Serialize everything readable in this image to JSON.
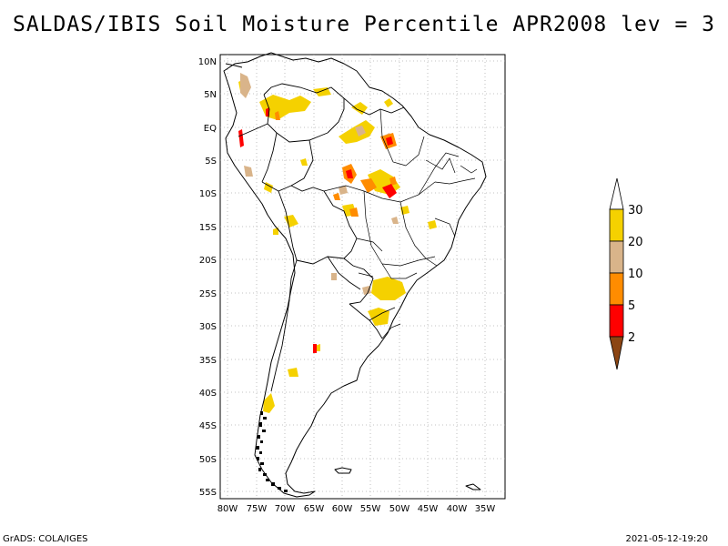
{
  "title": "SALDAS/IBIS Soil Moisture Percentile APR2008 lev = 3",
  "lat_labels": [
    "10N",
    "5N",
    "EQ",
    "5S",
    "10S",
    "15S",
    "20S",
    "25S",
    "30S",
    "35S",
    "40S",
    "45S",
    "50S",
    "55S"
  ],
  "lon_labels": [
    "80W",
    "75W",
    "70W",
    "65W",
    "60W",
    "55W",
    "50W",
    "45W",
    "40W",
    "35W"
  ],
  "colorbar": {
    "labels": [
      "30",
      "20",
      "10",
      "5",
      "2"
    ],
    "colors": {
      "above_30": "#ffffff",
      "20_30": "#f5d100",
      "10_20": "#d9b48a",
      "5_10": "#ff8c00",
      "2_5": "#ff0000",
      "below_2": "#8b4513"
    }
  },
  "footer": {
    "left": "GrADS: COLA/IGES",
    "right": "2021-05-12-19:20"
  }
}
